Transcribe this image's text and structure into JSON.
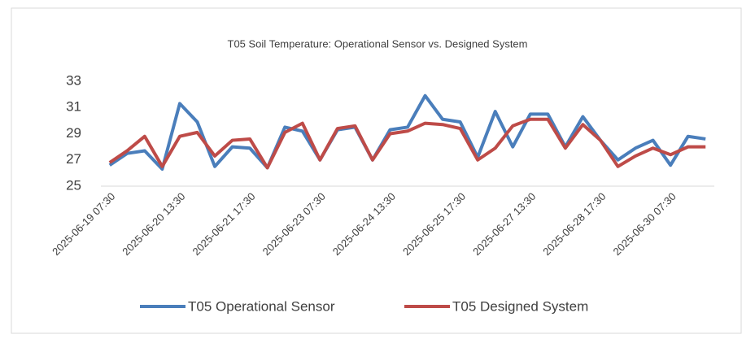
{
  "chart_data": {
    "type": "line",
    "title": "T05 Soil Temperature: Operational Sensor vs. Designed System",
    "categories": [
      "2025-06-19 07:30",
      null,
      null,
      null,
      "2025-06-20 13:30",
      null,
      null,
      null,
      "2025-06-21 17:30",
      null,
      null,
      null,
      "2025-06-23 07:30",
      null,
      null,
      null,
      "2025-06-24 13:30",
      null,
      null,
      null,
      "2025-06-25 17:30",
      null,
      null,
      null,
      "2025-06-27 13:30",
      null,
      null,
      null,
      "2025-06-28 17:30",
      null,
      null,
      null,
      "2025-06-30 07:30",
      null,
      null
    ],
    "series": [
      {
        "name": "T05 Operational Sensor",
        "color": "#4a7ebb",
        "values": [
          26.6,
          27.5,
          27.7,
          26.3,
          31.3,
          29.9,
          26.5,
          28.0,
          27.9,
          26.4,
          29.5,
          29.2,
          27.0,
          29.3,
          29.5,
          27.0,
          29.3,
          29.5,
          31.9,
          30.1,
          29.9,
          27.2,
          30.7,
          28.0,
          30.5,
          30.5,
          28.0,
          30.3,
          28.5,
          27.0,
          27.9,
          28.5,
          26.6,
          28.8,
          28.6
        ]
      },
      {
        "name": "T05 Designed System",
        "color": "#be4b48",
        "values": [
          26.8,
          27.7,
          28.8,
          26.5,
          28.8,
          29.1,
          27.3,
          28.5,
          28.6,
          26.4,
          29.1,
          29.8,
          27.0,
          29.4,
          29.6,
          27.0,
          29.0,
          29.2,
          29.8,
          29.7,
          29.4,
          27.0,
          27.9,
          29.6,
          30.1,
          30.1,
          27.9,
          29.7,
          28.5,
          26.5,
          27.3,
          27.9,
          27.4,
          28.0,
          28.0
        ]
      }
    ],
    "ylim": [
      25,
      33
    ],
    "yticks": [
      25,
      27,
      29,
      31,
      33
    ],
    "grid": false,
    "legend": "bottom"
  }
}
